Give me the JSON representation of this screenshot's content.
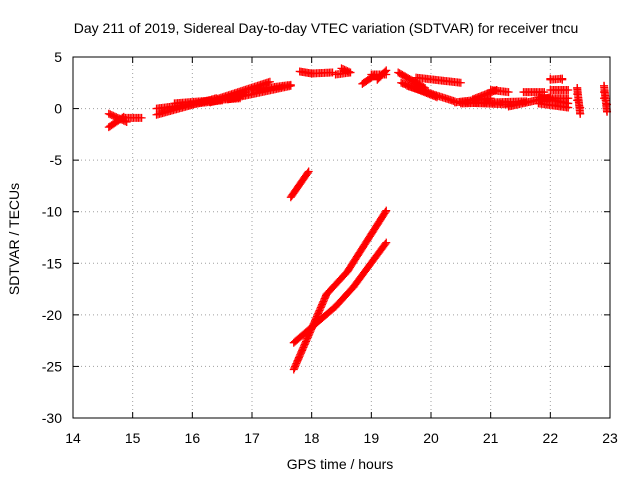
{
  "chart_data": {
    "type": "scatter",
    "title": "Day 211 of 2019, Sidereal Day-to-day VTEC variation (SDTVAR) for receiver tncu",
    "xlabel": "GPS time / hours",
    "ylabel": "SDTVAR / TECUs",
    "xlim": [
      14,
      23
    ],
    "ylim": [
      -30,
      5
    ],
    "xticks": [
      14,
      15,
      16,
      17,
      18,
      19,
      20,
      21,
      22,
      23
    ],
    "yticks": [
      5,
      0,
      -5,
      -10,
      -15,
      -20,
      -25,
      -30
    ],
    "grid": true,
    "marker": "plus",
    "color": "#ff0000",
    "segments": [
      {
        "x0": 14.6,
        "y0": -1.8,
        "x1": 14.85,
        "y1": -0.8
      },
      {
        "x0": 14.85,
        "y0": -0.9,
        "x1": 15.15,
        "y1": -0.9
      },
      {
        "x0": 14.6,
        "y0": -0.5,
        "x1": 14.9,
        "y1": -1.3
      },
      {
        "x0": 15.4,
        "y0": -0.6,
        "x1": 16.4,
        "y1": 1.0
      },
      {
        "x0": 15.4,
        "y0": 0.0,
        "x1": 16.5,
        "y1": 0.8
      },
      {
        "x0": 15.7,
        "y0": 0.5,
        "x1": 16.8,
        "y1": 1.0
      },
      {
        "x0": 16.3,
        "y0": 0.6,
        "x1": 16.9,
        "y1": 1.6
      },
      {
        "x0": 16.4,
        "y0": 0.9,
        "x1": 17.3,
        "y1": 2.6
      },
      {
        "x0": 16.6,
        "y0": 0.9,
        "x1": 17.65,
        "y1": 2.2
      },
      {
        "x0": 17.0,
        "y0": 1.8,
        "x1": 17.65,
        "y1": 2.3
      },
      {
        "x0": 17.8,
        "y0": 3.6,
        "x1": 18.0,
        "y1": 3.4
      },
      {
        "x0": 18.0,
        "y0": 3.4,
        "x1": 18.35,
        "y1": 3.5
      },
      {
        "x0": 18.4,
        "y0": 3.3,
        "x1": 18.65,
        "y1": 3.5
      },
      {
        "x0": 18.5,
        "y0": 3.9,
        "x1": 18.65,
        "y1": 3.5
      },
      {
        "x0": 18.85,
        "y0": 2.4,
        "x1": 19.05,
        "y1": 3.2
      },
      {
        "x0": 19.0,
        "y0": 3.3,
        "x1": 19.25,
        "y1": 3.3
      },
      {
        "x0": 19.1,
        "y0": 2.8,
        "x1": 19.25,
        "y1": 3.7
      },
      {
        "x0": 19.45,
        "y0": 3.5,
        "x1": 19.9,
        "y1": 2.0
      },
      {
        "x0": 19.5,
        "y0": 2.5,
        "x1": 20.1,
        "y1": 1.1
      },
      {
        "x0": 19.6,
        "y0": 2.2,
        "x1": 20.4,
        "y1": 0.7
      },
      {
        "x0": 19.75,
        "y0": 3.0,
        "x1": 20.5,
        "y1": 2.5
      },
      {
        "x0": 20.4,
        "y0": 0.6,
        "x1": 21.0,
        "y1": 1.0
      },
      {
        "x0": 20.5,
        "y0": 0.6,
        "x1": 21.3,
        "y1": 0.4
      },
      {
        "x0": 20.5,
        "y0": 0.5,
        "x1": 21.6,
        "y1": 0.7
      },
      {
        "x0": 20.7,
        "y0": 0.9,
        "x1": 21.1,
        "y1": 1.8
      },
      {
        "x0": 21.0,
        "y0": 1.8,
        "x1": 21.3,
        "y1": 1.6
      },
      {
        "x0": 21.3,
        "y0": 0.2,
        "x1": 22.0,
        "y1": 1.1
      },
      {
        "x0": 21.55,
        "y0": 1.6,
        "x1": 21.9,
        "y1": 1.6
      },
      {
        "x0": 21.8,
        "y0": 0.5,
        "x1": 22.3,
        "y1": 0.1
      },
      {
        "x0": 21.85,
        "y0": 1.0,
        "x1": 22.3,
        "y1": 1.0
      },
      {
        "x0": 22.0,
        "y0": 1.8,
        "x1": 22.3,
        "y1": 1.8
      },
      {
        "x0": 21.8,
        "y0": 1.1,
        "x1": 22.3,
        "y1": 0.5
      },
      {
        "x0": 22.0,
        "y0": 2.8,
        "x1": 22.2,
        "y1": 2.9
      },
      {
        "x0": 22.45,
        "y0": 2.0,
        "x1": 22.5,
        "y1": -0.5
      },
      {
        "x0": 22.9,
        "y0": 2.2,
        "x1": 22.95,
        "y1": -0.3
      },
      {
        "x0": 17.65,
        "y0": -8.6,
        "x1": 17.95,
        "y1": -6.1
      },
      {
        "x0": 17.7,
        "y0": -25.3,
        "x1": 18.25,
        "y1": -18.0
      },
      {
        "x0": 18.25,
        "y0": -18.0,
        "x1": 18.6,
        "y1": -15.8
      },
      {
        "x0": 17.7,
        "y0": -22.7,
        "x1": 18.4,
        "y1": -19.2
      },
      {
        "x0": 18.4,
        "y0": -19.2,
        "x1": 18.7,
        "y1": -17.3
      },
      {
        "x0": 18.6,
        "y0": -15.8,
        "x1": 19.25,
        "y1": -9.9
      },
      {
        "x0": 18.7,
        "y0": -17.3,
        "x1": 19.25,
        "y1": -13.0
      }
    ],
    "points": [
      {
        "x": 22.0,
        "y": 2.9
      },
      {
        "x": 22.2,
        "y": 2.8
      },
      {
        "x": 22.45,
        "y": 2.0
      },
      {
        "x": 22.45,
        "y": 1.4
      },
      {
        "x": 22.45,
        "y": 0.8
      },
      {
        "x": 22.5,
        "y": 0.1
      },
      {
        "x": 22.5,
        "y": -0.5
      },
      {
        "x": 22.9,
        "y": 2.2
      },
      {
        "x": 22.9,
        "y": 1.6
      },
      {
        "x": 22.9,
        "y": 1.0
      },
      {
        "x": 22.95,
        "y": 0.4
      },
      {
        "x": 22.95,
        "y": -0.3
      }
    ]
  }
}
